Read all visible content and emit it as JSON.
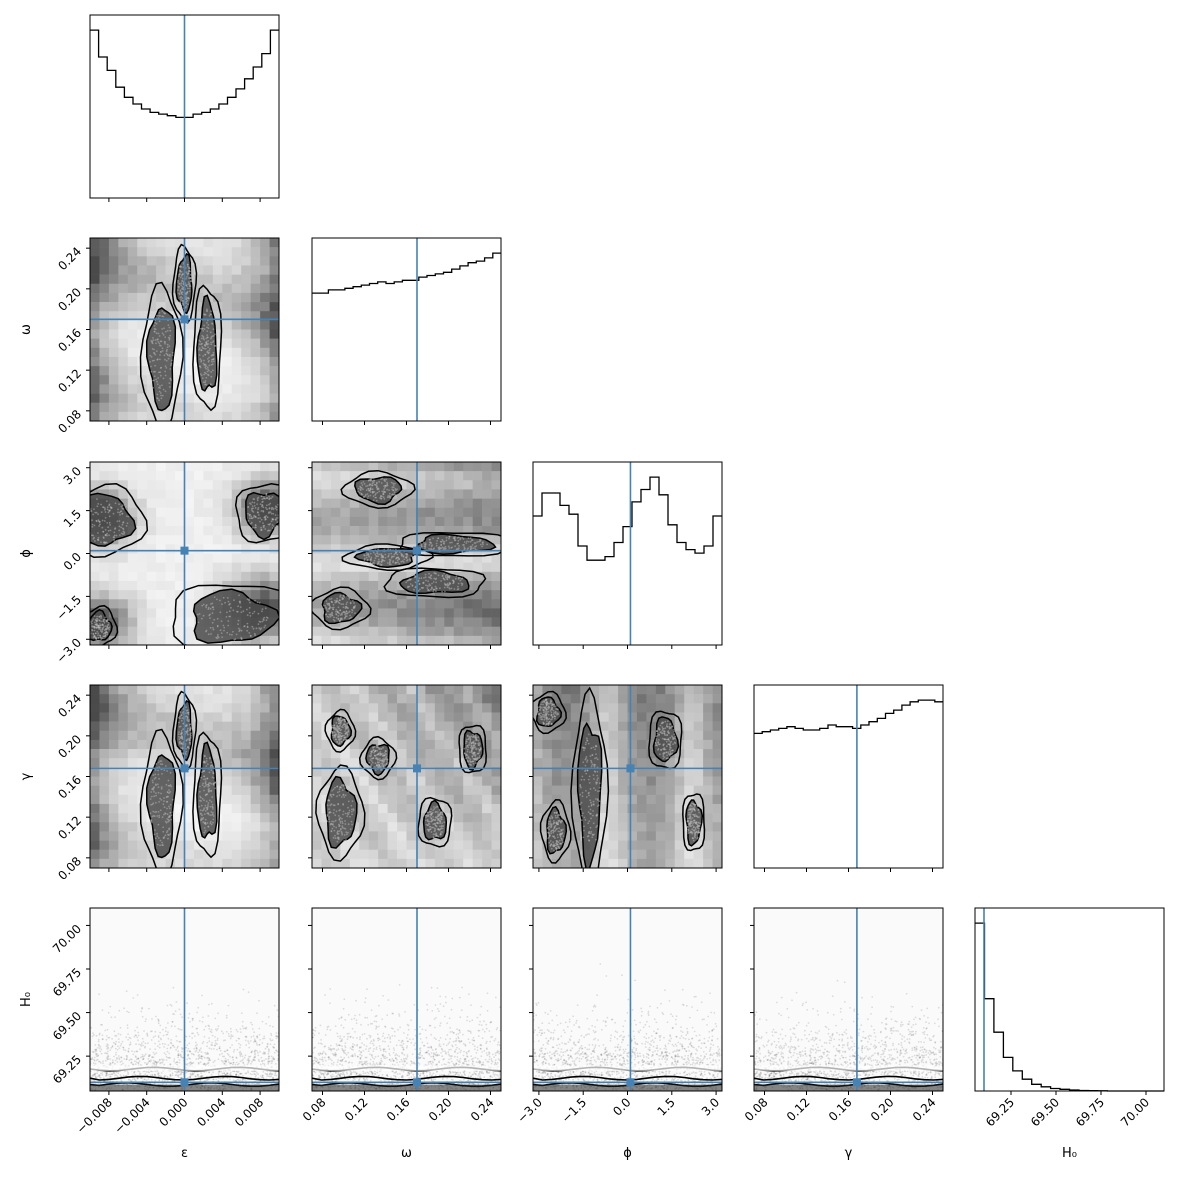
{
  "chart_data": {
    "type": "corner",
    "parameters": [
      {
        "key": "eps",
        "label": "ε",
        "range": [
          -0.01,
          0.01
        ],
        "ticks": [
          -0.008,
          -0.004,
          0.0,
          0.004,
          0.008
        ],
        "tick_labels": [
          "−0.008",
          "−0.004",
          "0.000",
          "0.004",
          "0.008"
        ],
        "truth": 0.0
      },
      {
        "key": "omega",
        "label": "ω",
        "range": [
          0.07,
          0.25
        ],
        "ticks": [
          0.08,
          0.12,
          0.16,
          0.2,
          0.24
        ],
        "tick_labels": [
          "0.08",
          "0.12",
          "0.16",
          "0.20",
          "0.24"
        ],
        "truth": 0.17
      },
      {
        "key": "phi",
        "label": "ϕ",
        "range": [
          -3.2,
          3.2
        ],
        "ticks": [
          -3.0,
          -1.5,
          0.0,
          1.5,
          3.0
        ],
        "tick_labels": [
          "−3.0",
          "−1.5",
          "0.0",
          "1.5",
          "3.0"
        ],
        "truth": 0.1
      },
      {
        "key": "gamma",
        "label": "γ",
        "range": [
          0.07,
          0.25
        ],
        "ticks": [
          0.08,
          0.12,
          0.16,
          0.2,
          0.24
        ],
        "tick_labels": [
          "0.08",
          "0.12",
          "0.16",
          "0.20",
          "0.24"
        ],
        "truth": 0.168
      },
      {
        "key": "H0",
        "label": "H₀",
        "range": [
          69.05,
          70.1
        ],
        "ticks": [
          69.25,
          69.5,
          69.75,
          70.0
        ],
        "tick_labels": [
          "69.25",
          "69.50",
          "69.75",
          "70.00"
        ],
        "truth": 69.1
      }
    ],
    "histograms": {
      "eps": [
        1.0,
        0.84,
        0.76,
        0.66,
        0.6,
        0.56,
        0.53,
        0.51,
        0.5,
        0.49,
        0.48,
        0.48,
        0.5,
        0.51,
        0.53,
        0.56,
        0.6,
        0.65,
        0.71,
        0.78,
        0.86,
        1.0
      ],
      "omega": [
        0.8,
        0.8,
        0.82,
        0.82,
        0.83,
        0.84,
        0.85,
        0.86,
        0.87,
        0.86,
        0.87,
        0.88,
        0.88,
        0.9,
        0.91,
        0.92,
        0.93,
        0.95,
        0.97,
        0.99,
        1.0,
        1.02,
        1.05
      ],
      "phi": [
        0.73,
        0.86,
        0.86,
        0.79,
        0.74,
        0.56,
        0.48,
        0.48,
        0.5,
        0.58,
        0.67,
        0.81,
        0.88,
        0.95,
        0.85,
        0.68,
        0.58,
        0.54,
        0.52,
        0.56,
        0.73
      ],
      "gamma": [
        0.81,
        0.82,
        0.83,
        0.84,
        0.85,
        0.84,
        0.83,
        0.83,
        0.84,
        0.86,
        0.85,
        0.85,
        0.84,
        0.86,
        0.88,
        0.9,
        0.93,
        0.95,
        0.98,
        1.0,
        1.01,
        1.01,
        1.0
      ],
      "H0": [
        1.0,
        0.55,
        0.35,
        0.2,
        0.12,
        0.07,
        0.04,
        0.025,
        0.015,
        0.01,
        0.006,
        0.003,
        0.002,
        0.001,
        0.0,
        0.0,
        0.0,
        0.0,
        0.0,
        0.0
      ]
    },
    "truth_color": "#4682b4",
    "grid": false
  }
}
